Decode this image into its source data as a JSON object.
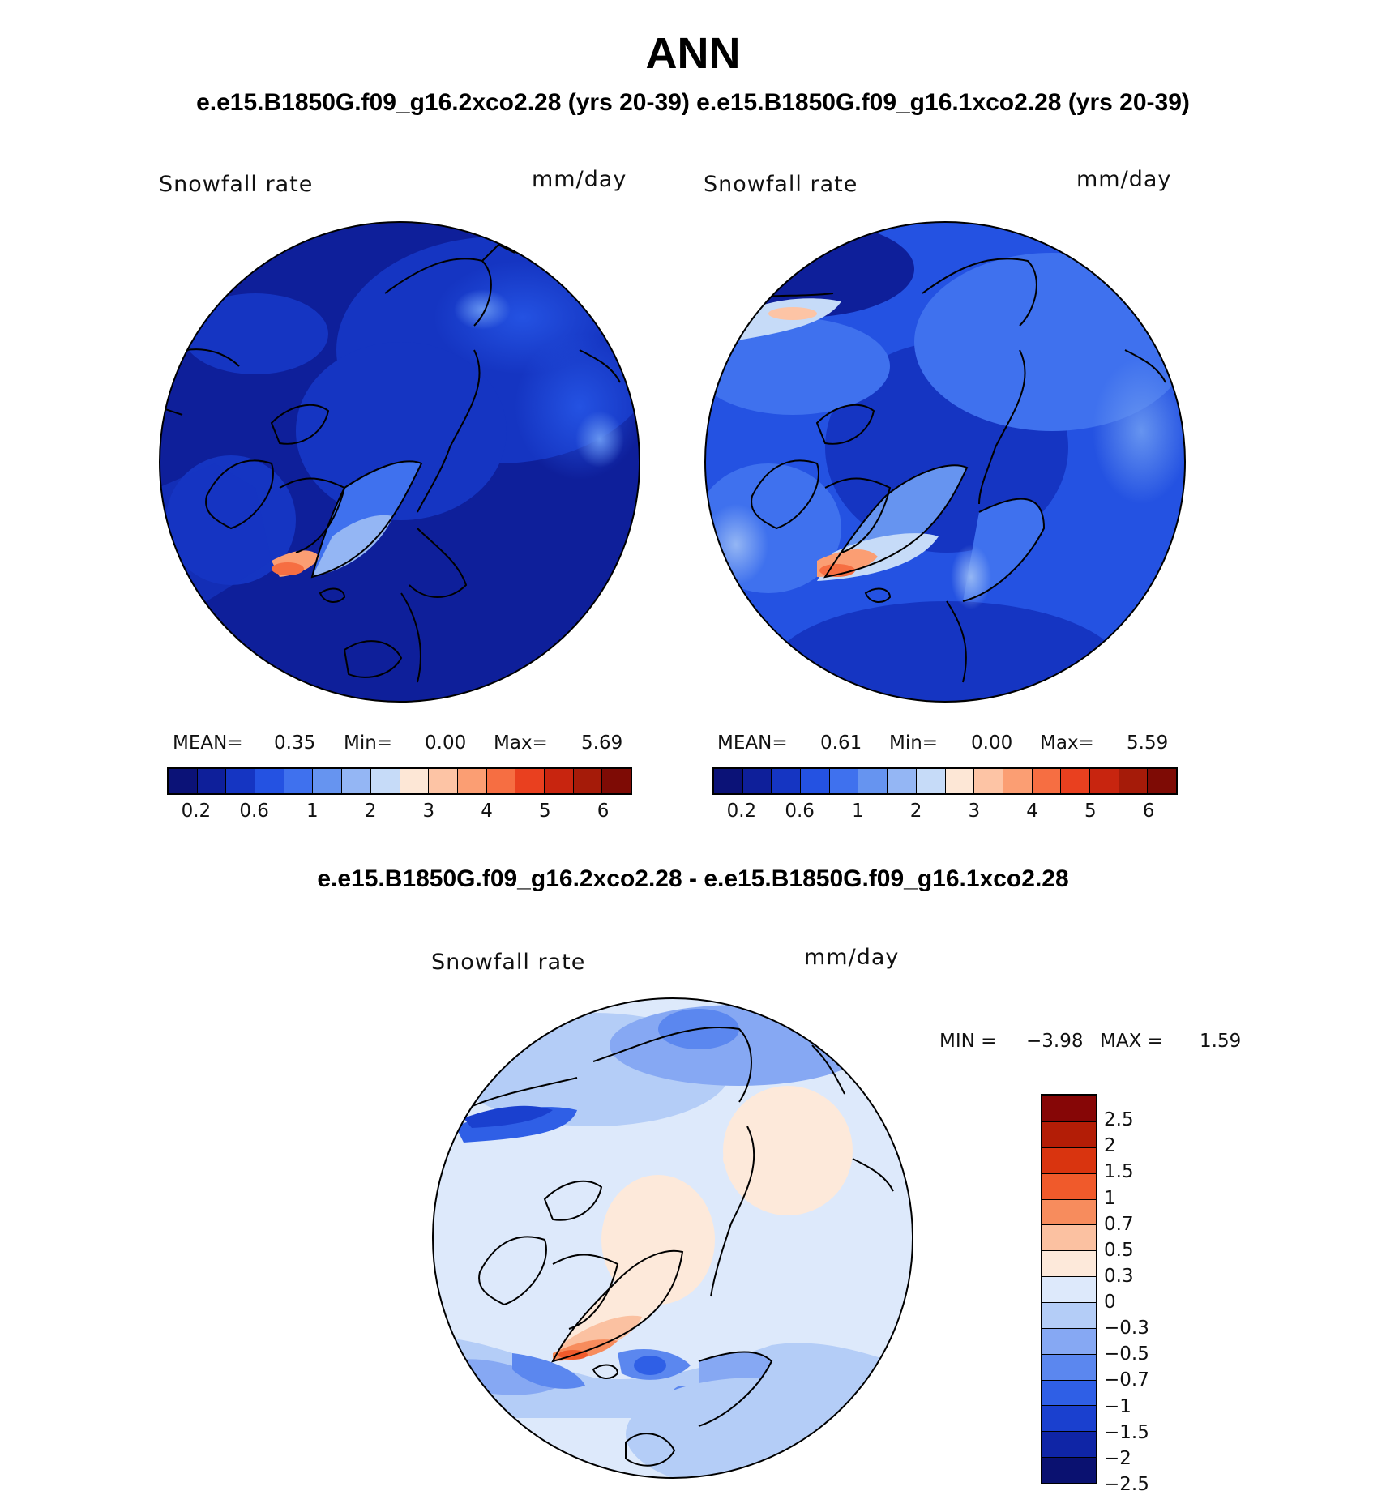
{
  "title": "ANN",
  "subtitle": "e.e15.B1850G.f09_g16.2xco2.28 (yrs 20-39) e.e15.B1850G.f09_g16.1xco2.28 (yrs 20-39)",
  "diff_title": "e.e15.B1850G.f09_g16.2xco2.28 - e.e15.B1850G.f09_g16.1xco2.28",
  "colors": {
    "abs_scale": [
      "#0b1277",
      "#0e1f9a",
      "#1535c2",
      "#2452e2",
      "#3f71ee",
      "#6694f0",
      "#94b6f4",
      "#c6dbf8",
      "#fde7d6",
      "#fdc4a5",
      "#fb9e73",
      "#f66e42",
      "#e9401f",
      "#c8250f",
      "#a51b09",
      "#7e0b05"
    ],
    "diff_scale": [
      "#0a1170",
      "#0f25a6",
      "#1a40cf",
      "#2f5fe6",
      "#5b87ef",
      "#86a8f3",
      "#b4cdf7",
      "#dde9fb",
      "#fde9da",
      "#fbc1a1",
      "#f78c5d",
      "#f05a2b",
      "#d9340f",
      "#b31d06",
      "#860606"
    ]
  },
  "panel_left": {
    "variable": "Snowfall rate",
    "units": "mm/day",
    "mean_label": "MEAN=",
    "mean_value": "0.35",
    "min_label": "Min=",
    "min_value": "0.00",
    "max_label": "Max=",
    "max_value": "5.69",
    "ticks": [
      "0.2",
      "0.6",
      "1",
      "2",
      "3",
      "4",
      "5",
      "6"
    ]
  },
  "panel_right": {
    "variable": "Snowfall rate",
    "units": "mm/day",
    "mean_label": "MEAN=",
    "mean_value": "0.61",
    "min_label": "Min=",
    "min_value": "0.00",
    "max_label": "Max=",
    "max_value": "5.59",
    "ticks": [
      "0.2",
      "0.6",
      "1",
      "2",
      "3",
      "4",
      "5",
      "6"
    ]
  },
  "panel_diff": {
    "variable": "Snowfall rate",
    "units": "mm/day",
    "min_label": "MIN =",
    "min_value": "−3.98",
    "max_label": "MAX =",
    "max_value": "1.59",
    "ticks": [
      "2.5",
      "2",
      "1.5",
      "1",
      "0.7",
      "0.5",
      "0.3",
      "0",
      "−0.3",
      "−0.5",
      "−0.7",
      "−1",
      "−1.5",
      "−2",
      "−2.5"
    ]
  }
}
